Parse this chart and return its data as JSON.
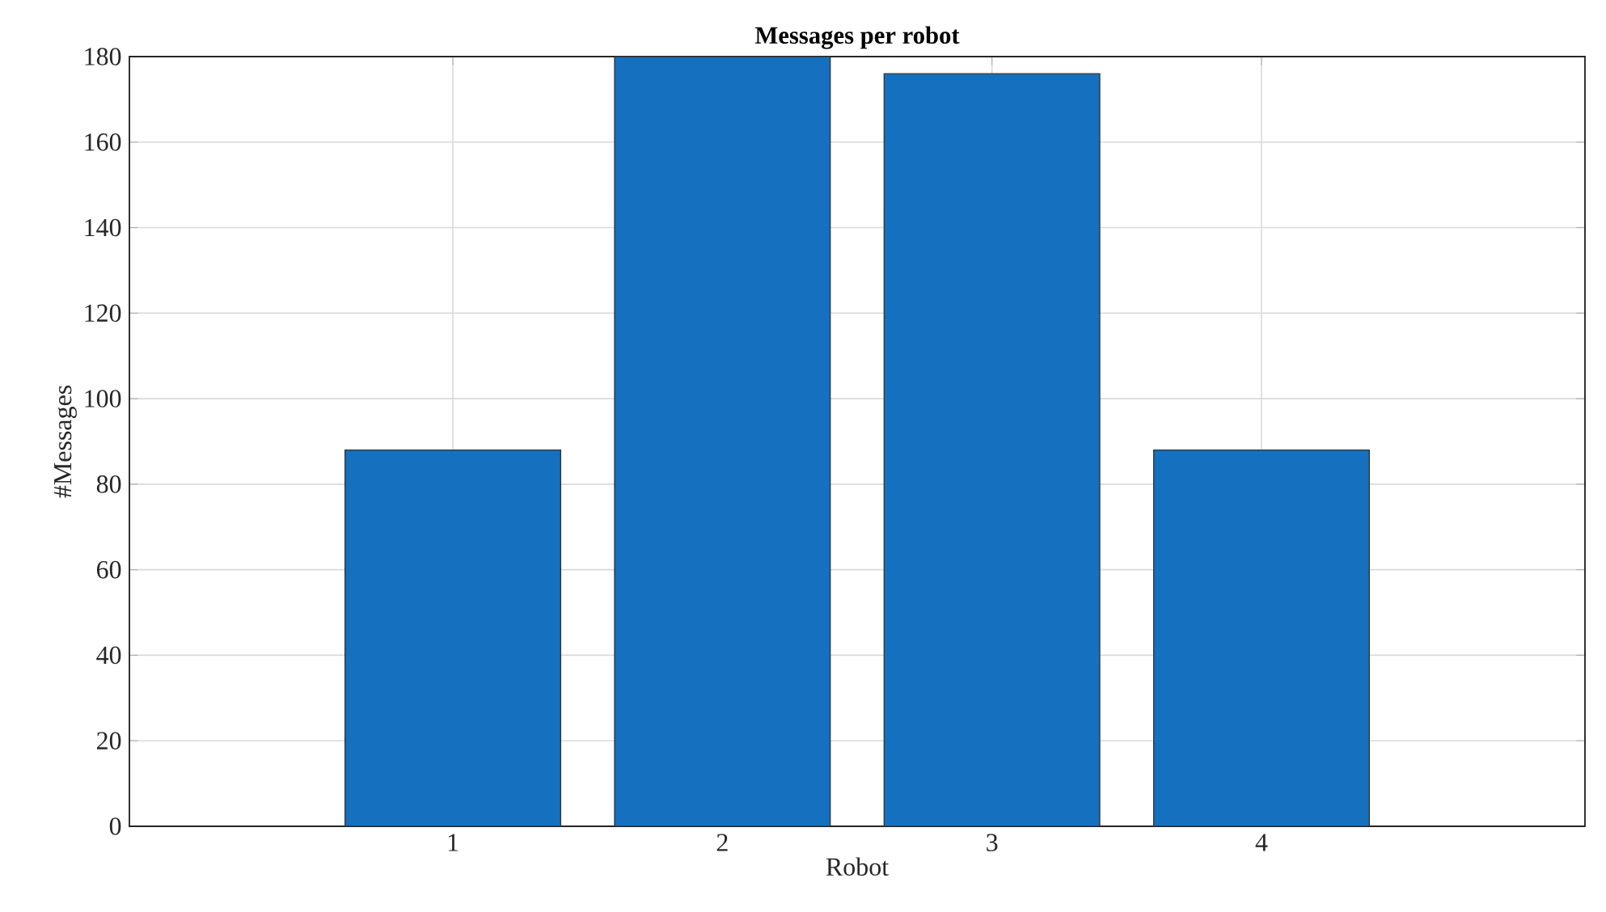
{
  "chart_data": {
    "type": "bar",
    "title": "**Messages per robot**",
    "xlabel": "Robot",
    "ylabel": "#Messages",
    "x": [
      1,
      2,
      3,
      4
    ],
    "values": [
      88,
      180,
      176,
      88
    ],
    "color": "#1570bf",
    "xlim": [
      -0.2,
      5.2
    ],
    "xticks": [
      1,
      2,
      3,
      4
    ],
    "ylim": [
      0,
      180
    ],
    "yticks": [
      0,
      20,
      40,
      60,
      80,
      100,
      120,
      140,
      160,
      180
    ],
    "grid": true
  }
}
